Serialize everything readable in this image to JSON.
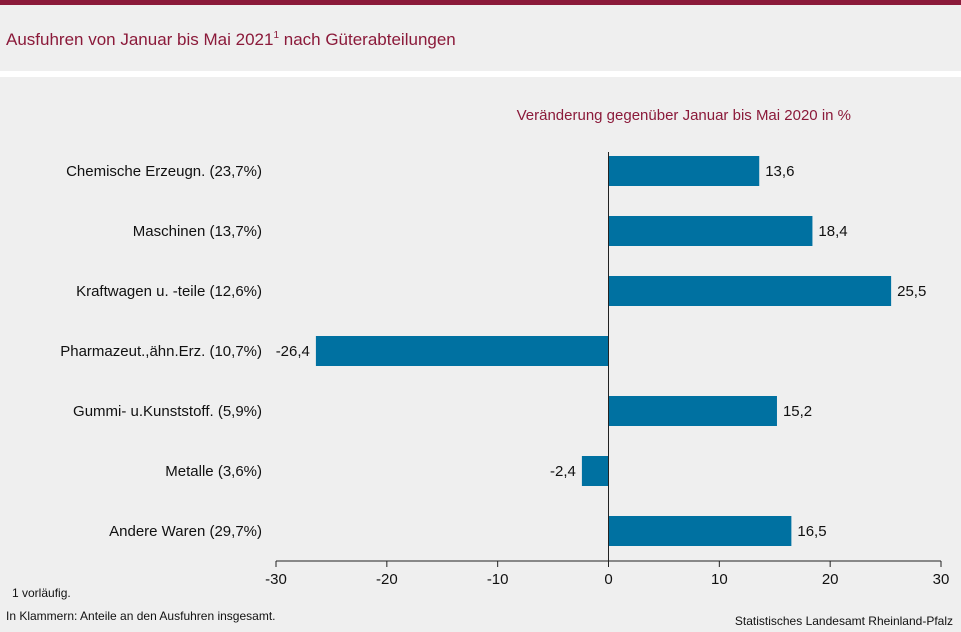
{
  "header": {
    "title_main": "Ausfuhren von Januar bis Mai 2021",
    "title_sup": "1",
    "title_rest": " nach Güterabteilungen"
  },
  "footer": {
    "note1": "1 vorläufig.",
    "note2": "In Klammern: Anteile an den Ausfuhren insgesamt.",
    "source": "Statistisches Landesamt Rheinland-Pfalz"
  },
  "colors": {
    "bar": "#0071a1",
    "accent": "#8b1a3a",
    "background": "#efefef"
  },
  "chart_data": {
    "type": "bar",
    "orientation": "horizontal",
    "title": "Veränderung gegenüber Januar bis Mai 2020 in %",
    "categories": [
      "Chemische Erzeugn. (23,7%)",
      "Maschinen (13,7%)",
      "Kraftwagen u. -teile (12,6%)",
      "Pharmazeut.,ähn.Erz. (10,7%)",
      "Gummi- u.Kunststoff. (5,9%)",
      "Metalle (3,6%)",
      "Andere Waren (29,7%)"
    ],
    "values": [
      13.6,
      18.4,
      25.5,
      -26.4,
      15.2,
      -2.4,
      16.5
    ],
    "value_labels": [
      "13,6",
      "18,4",
      "25,5",
      "-26,4",
      "15,2",
      "-2,4",
      "16,5"
    ],
    "xlim": [
      -30,
      30
    ],
    "xticks": [
      -30,
      -20,
      -10,
      0,
      10,
      20,
      30
    ],
    "xtick_labels": [
      "-30",
      "-20",
      "-10",
      "0",
      "10",
      "20",
      "30"
    ],
    "grid": false,
    "legend": "none"
  }
}
